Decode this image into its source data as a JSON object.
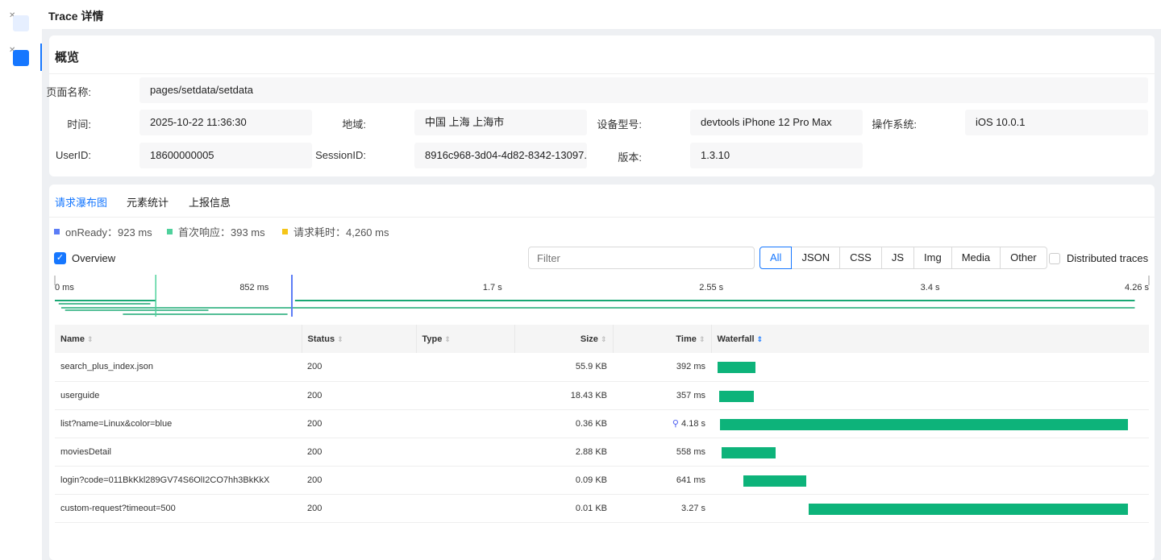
{
  "header": {
    "title": "Trace 详情"
  },
  "overview": {
    "title": "概览",
    "fields": [
      {
        "label": "页面名称:",
        "value": "pages/setdata/setdata"
      },
      {
        "label": "时间:",
        "value": "2025-10-22 11:36:30"
      },
      {
        "label": "地域:",
        "value": "中国 上海 上海市"
      },
      {
        "label": "设备型号:",
        "value": "devtools iPhone 12 Pro Max"
      },
      {
        "label": "操作系统:",
        "value": "iOS 10.0.1"
      },
      {
        "label": "UserID:",
        "value": "18600000005"
      },
      {
        "label": "SessionID:",
        "value": "8916c968-3d04-4d82-8342-13097..."
      },
      {
        "label": "版本:",
        "value": "1.3.10"
      }
    ]
  },
  "tabs": [
    "请求瀑布图",
    "元素统计",
    "上报信息"
  ],
  "legend": [
    {
      "label": "onReady：923 ms",
      "color": "#5b7cf6"
    },
    {
      "label": "首次响应：393 ms",
      "color": "#4fd19c"
    },
    {
      "label": "请求耗时：4,260 ms",
      "color": "#f5c518"
    }
  ],
  "overview_checkbox": "Overview",
  "filter_placeholder": "Filter",
  "type_filters": [
    "All",
    "JSON",
    "CSS",
    "JS",
    "Img",
    "Media",
    "Other"
  ],
  "distributed": "Distributed traces",
  "timeline": {
    "ticks": [
      "0 ms",
      "852 ms",
      "1.7 s",
      "2.55 s",
      "3.4 s",
      "4.26 s"
    ],
    "total_ms": 4260,
    "first_response_ms": 393,
    "onready_ms": 923
  },
  "columns": [
    "Name",
    "Status",
    "Type",
    "Size",
    "Time",
    "Waterfall"
  ],
  "rows": [
    {
      "name": "search_plus_index.json",
      "status": "200",
      "type": "",
      "size": "55.9 KB",
      "time": "392 ms",
      "start_ms": 0,
      "dur_ms": 392
    },
    {
      "name": "userguide",
      "status": "200",
      "type": "",
      "size": "18.43 KB",
      "time": "357 ms",
      "start_ms": 15,
      "dur_ms": 357
    },
    {
      "name": "list?name=Linux&color=blue",
      "status": "200",
      "type": "",
      "size": "0.36 KB",
      "time": "4.18 s",
      "start_ms": 25,
      "dur_ms": 4180,
      "icon": "trace-icon"
    },
    {
      "name": "moviesDetail",
      "status": "200",
      "type": "",
      "size": "2.88 KB",
      "time": "558 ms",
      "start_ms": 40,
      "dur_ms": 558
    },
    {
      "name": "login?code=011BkKkl289GV74S6OlI2CO7hh3BkKkX",
      "status": "200",
      "type": "",
      "size": "0.09 KB",
      "time": "641 ms",
      "start_ms": 265,
      "dur_ms": 641
    },
    {
      "name": "custom-request?timeout=500",
      "status": "200",
      "type": "",
      "size": "0.01 KB",
      "time": "3.27 s",
      "start_ms": 935,
      "dur_ms": 3270
    }
  ],
  "colors": {
    "accent": "#1677ff",
    "bar": "#0db37a"
  }
}
